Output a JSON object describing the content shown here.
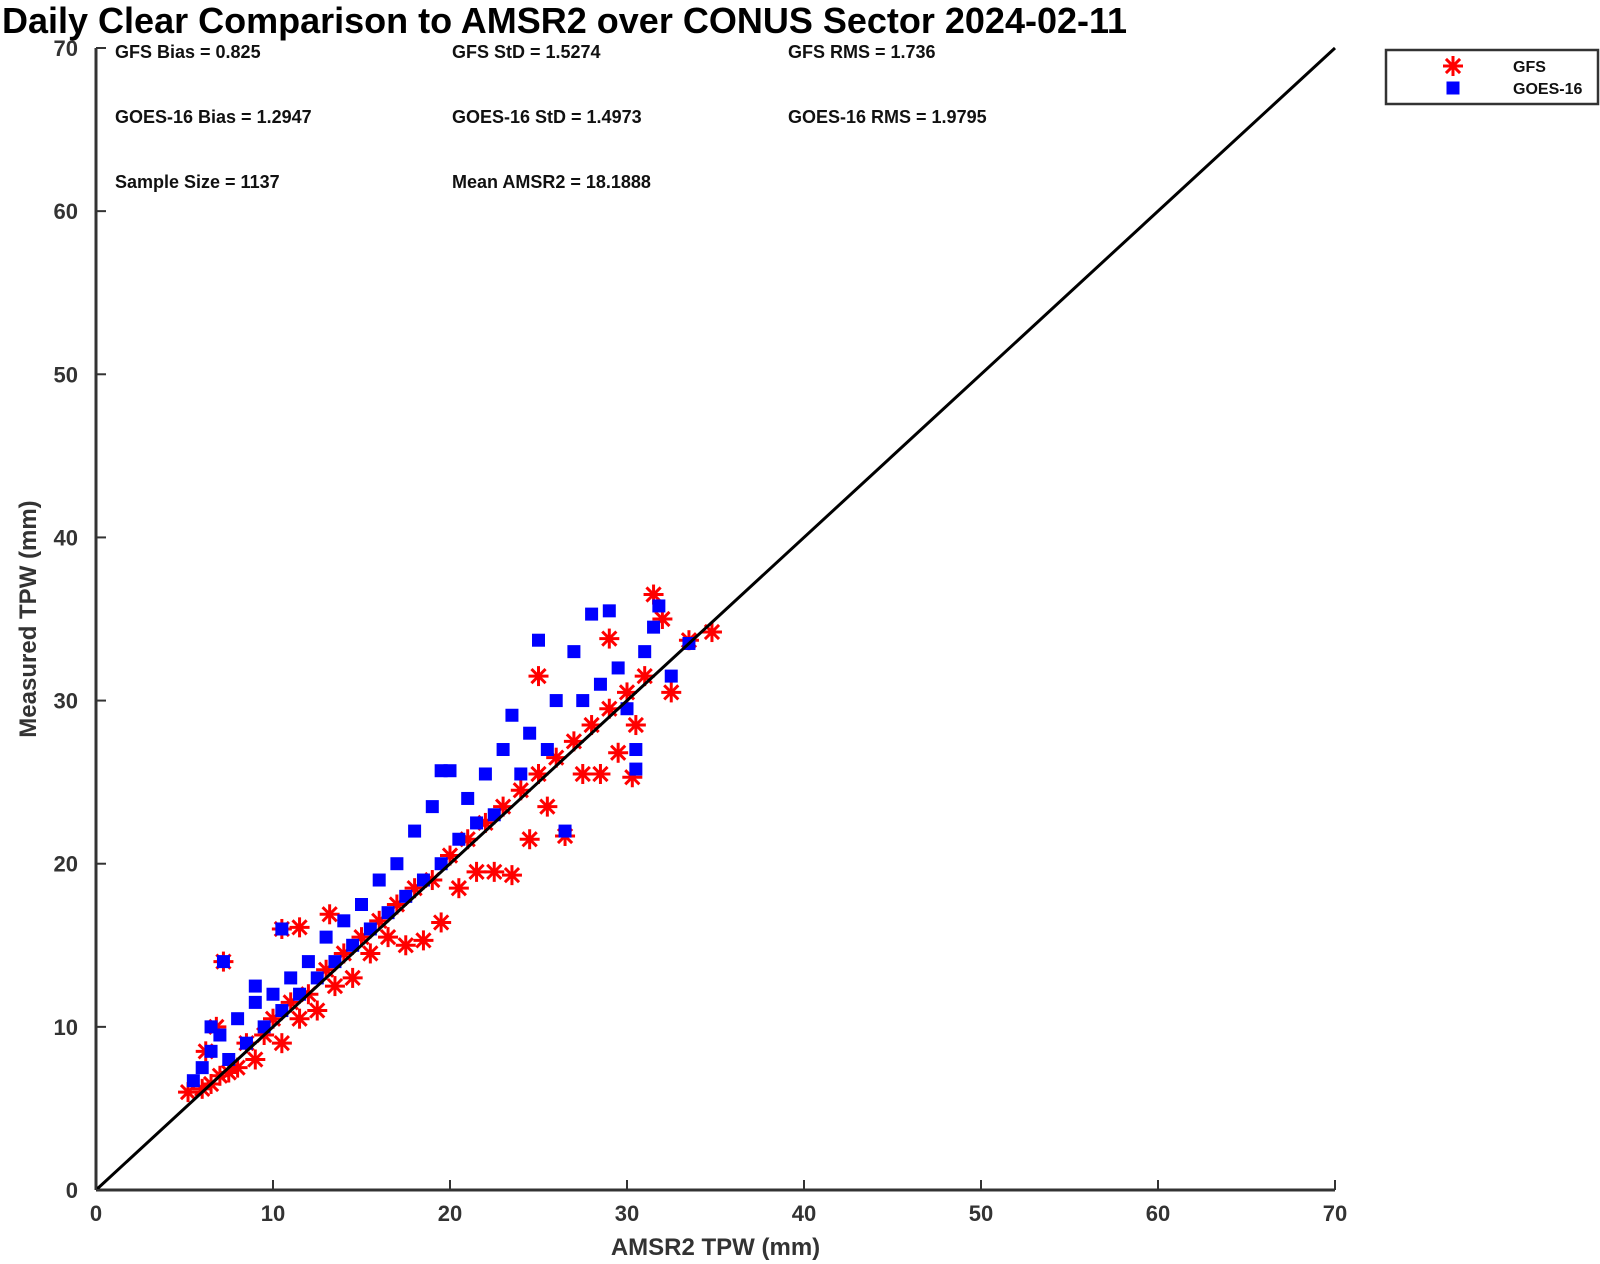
{
  "chart_data": {
    "type": "scatter",
    "title": "Daily Clear Comparison to AMSR2 over CONUS Sector 2024-02-11",
    "xlabel": "AMSR2 TPW (mm)",
    "ylabel": "Measured TPW (mm)",
    "xlim": [
      0,
      70
    ],
    "ylim": [
      0,
      70
    ],
    "xticks": [
      0,
      10,
      20,
      30,
      40,
      50,
      60,
      70
    ],
    "yticks": [
      0,
      10,
      20,
      30,
      40,
      50,
      60,
      70
    ],
    "reference_line": "1:1",
    "grid": false,
    "legend_position": "outside top-right",
    "stats": [
      [
        "GFS Bias = 0.825",
        "GFS StD = 1.5274",
        "GFS RMS = 1.736"
      ],
      [
        "GOES-16 Bias = 1.2947",
        "GOES-16 StD = 1.4973",
        "GOES-16 RMS = 1.9795"
      ],
      [
        "Sample Size = 1137",
        "Mean AMSR2 = 18.1888",
        ""
      ]
    ],
    "series": [
      {
        "name": "GFS",
        "marker": "asterisk",
        "color": "#ff0000",
        "points": [
          [
            5.2,
            6.0
          ],
          [
            6.0,
            6.2
          ],
          [
            6.5,
            6.5
          ],
          [
            7.0,
            7.0
          ],
          [
            8.0,
            7.5
          ],
          [
            8.5,
            9.0
          ],
          [
            9.0,
            8.0
          ],
          [
            9.5,
            9.5
          ],
          [
            10.0,
            10.5
          ],
          [
            10.5,
            9.0
          ],
          [
            11.0,
            11.5
          ],
          [
            11.5,
            10.5
          ],
          [
            12.0,
            12.0
          ],
          [
            12.5,
            11.0
          ],
          [
            13.0,
            13.5
          ],
          [
            13.2,
            16.9
          ],
          [
            13.5,
            12.5
          ],
          [
            14.0,
            14.5
          ],
          [
            14.5,
            13.0
          ],
          [
            15.0,
            15.5
          ],
          [
            15.5,
            14.5
          ],
          [
            16.0,
            16.5
          ],
          [
            16.5,
            15.5
          ],
          [
            17.0,
            17.5
          ],
          [
            17.5,
            15.0
          ],
          [
            18.0,
            18.5
          ],
          [
            18.5,
            15.3
          ],
          [
            19.0,
            19.0
          ],
          [
            19.5,
            16.4
          ],
          [
            20.0,
            20.5
          ],
          [
            20.5,
            18.5
          ],
          [
            21.0,
            21.5
          ],
          [
            21.5,
            19.5
          ],
          [
            22.0,
            22.5
          ],
          [
            22.5,
            19.5
          ],
          [
            23.0,
            23.5
          ],
          [
            23.5,
            19.3
          ],
          [
            24.0,
            24.5
          ],
          [
            24.5,
            21.5
          ],
          [
            25.0,
            25.5
          ],
          [
            25.0,
            31.5
          ],
          [
            25.5,
            23.5
          ],
          [
            26.0,
            26.5
          ],
          [
            26.5,
            21.7
          ],
          [
            27.0,
            27.5
          ],
          [
            27.5,
            25.5
          ],
          [
            28.0,
            28.5
          ],
          [
            28.5,
            25.5
          ],
          [
            29.0,
            29.5
          ],
          [
            29.0,
            33.8
          ],
          [
            29.5,
            26.8
          ],
          [
            30.0,
            30.5
          ],
          [
            30.3,
            25.3
          ],
          [
            30.5,
            28.5
          ],
          [
            31.0,
            31.5
          ],
          [
            31.5,
            36.5
          ],
          [
            32.0,
            35.0
          ],
          [
            32.5,
            30.5
          ],
          [
            33.5,
            33.7
          ],
          [
            34.8,
            34.2
          ],
          [
            7.2,
            14.0
          ],
          [
            10.5,
            16.0
          ],
          [
            11.5,
            16.1
          ],
          [
            6.2,
            8.5
          ],
          [
            6.8,
            10.0
          ],
          [
            7.5,
            7.2
          ]
        ]
      },
      {
        "name": "GOES-16",
        "marker": "square",
        "color": "#0000ff",
        "points": [
          [
            5.5,
            6.7
          ],
          [
            6.0,
            7.5
          ],
          [
            6.5,
            8.5
          ],
          [
            7.0,
            9.5
          ],
          [
            7.5,
            8.0
          ],
          [
            8.0,
            10.5
          ],
          [
            8.5,
            9.0
          ],
          [
            9.0,
            11.5
          ],
          [
            9.5,
            10.0
          ],
          [
            10.0,
            12.0
          ],
          [
            10.5,
            11.0
          ],
          [
            11.0,
            13.0
          ],
          [
            11.5,
            12.0
          ],
          [
            12.0,
            14.0
          ],
          [
            12.5,
            13.0
          ],
          [
            13.0,
            15.5
          ],
          [
            13.5,
            14.0
          ],
          [
            14.0,
            16.5
          ],
          [
            14.5,
            15.0
          ],
          [
            15.0,
            17.5
          ],
          [
            15.5,
            16.0
          ],
          [
            16.0,
            19.0
          ],
          [
            16.5,
            17.0
          ],
          [
            17.0,
            20.0
          ],
          [
            17.5,
            18.0
          ],
          [
            18.0,
            22.0
          ],
          [
            18.5,
            19.0
          ],
          [
            19.0,
            23.5
          ],
          [
            19.5,
            20.0
          ],
          [
            19.5,
            25.7
          ],
          [
            20.0,
            25.7
          ],
          [
            20.5,
            21.5
          ],
          [
            21.0,
            24.0
          ],
          [
            21.5,
            22.5
          ],
          [
            22.0,
            25.5
          ],
          [
            22.5,
            23.0
          ],
          [
            23.0,
            27.0
          ],
          [
            23.5,
            29.1
          ],
          [
            24.0,
            25.5
          ],
          [
            24.5,
            28.0
          ],
          [
            25.0,
            33.7
          ],
          [
            25.5,
            27.0
          ],
          [
            26.0,
            30.0
          ],
          [
            26.5,
            22.0
          ],
          [
            27.0,
            33.0
          ],
          [
            27.5,
            30.0
          ],
          [
            28.0,
            35.3
          ],
          [
            28.5,
            31.0
          ],
          [
            29.0,
            35.5
          ],
          [
            29.5,
            32.0
          ],
          [
            30.0,
            29.5
          ],
          [
            30.5,
            27.0
          ],
          [
            30.5,
            25.8
          ],
          [
            31.0,
            33.0
          ],
          [
            31.5,
            34.5
          ],
          [
            31.8,
            35.8
          ],
          [
            32.5,
            31.5
          ],
          [
            33.5,
            33.5
          ],
          [
            7.2,
            14.0
          ],
          [
            10.5,
            16.0
          ],
          [
            9.0,
            12.5
          ],
          [
            6.5,
            10.0
          ]
        ]
      }
    ]
  }
}
